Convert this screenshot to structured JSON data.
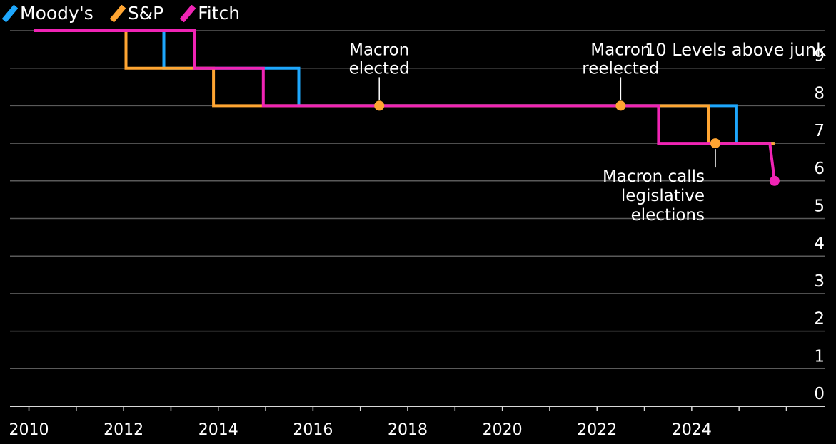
{
  "legend": [
    {
      "name": "Moody's",
      "color": "#1ea7fd"
    },
    {
      "name": "S&P",
      "color": "#ffa532"
    },
    {
      "name": "Fitch",
      "color": "#f024b5"
    }
  ],
  "chart_data": {
    "type": "line",
    "step": true,
    "ylabel": "10 Levels above junk",
    "ylim": [
      0,
      10
    ],
    "yticks": [
      0,
      1,
      2,
      3,
      4,
      5,
      6,
      7,
      8,
      9
    ],
    "xlim": [
      2009.6,
      2026.4
    ],
    "xticks": [
      2010,
      2012,
      2014,
      2016,
      2018,
      2020,
      2022,
      2024
    ],
    "grid": true,
    "legend_position": "top-left",
    "series": [
      {
        "name": "Moody's",
        "color": "#1ea7fd",
        "points": [
          [
            2010.1,
            10
          ],
          [
            2012.85,
            10
          ],
          [
            2012.85,
            9
          ],
          [
            2015.7,
            9
          ],
          [
            2015.7,
            8
          ],
          [
            2024.95,
            8
          ],
          [
            2024.95,
            7
          ],
          [
            2025.75,
            7
          ]
        ]
      },
      {
        "name": "S&P",
        "color": "#ffa532",
        "points": [
          [
            2010.1,
            10
          ],
          [
            2012.05,
            10
          ],
          [
            2012.05,
            9
          ],
          [
            2013.9,
            9
          ],
          [
            2013.9,
            8
          ],
          [
            2024.35,
            8
          ],
          [
            2024.35,
            7
          ],
          [
            2025.75,
            7
          ]
        ]
      },
      {
        "name": "Fitch",
        "color": "#f024b5",
        "points": [
          [
            2010.1,
            10
          ],
          [
            2013.5,
            10
          ],
          [
            2013.5,
            9
          ],
          [
            2014.95,
            9
          ],
          [
            2014.95,
            8
          ],
          [
            2023.3,
            8
          ],
          [
            2023.3,
            7
          ],
          [
            2025.65,
            7
          ],
          [
            2025.75,
            6
          ]
        ]
      }
    ],
    "annotations": [
      {
        "text": [
          "Macron",
          "elected"
        ],
        "x": 2017.4,
        "y": 8,
        "color": "#ffa532",
        "label_side": "above"
      },
      {
        "text": [
          "Macron",
          "reelected"
        ],
        "x": 2022.5,
        "y": 8,
        "color": "#ffa532",
        "label_side": "above"
      },
      {
        "text": [
          "Macron calls",
          "legislative",
          "elections"
        ],
        "x": 2024.5,
        "y": 7,
        "color": "#ffa532",
        "label_side": "below-left"
      }
    ],
    "end_marker": {
      "series": "Fitch",
      "x": 2025.75,
      "y": 6,
      "color": "#f024b5"
    }
  }
}
